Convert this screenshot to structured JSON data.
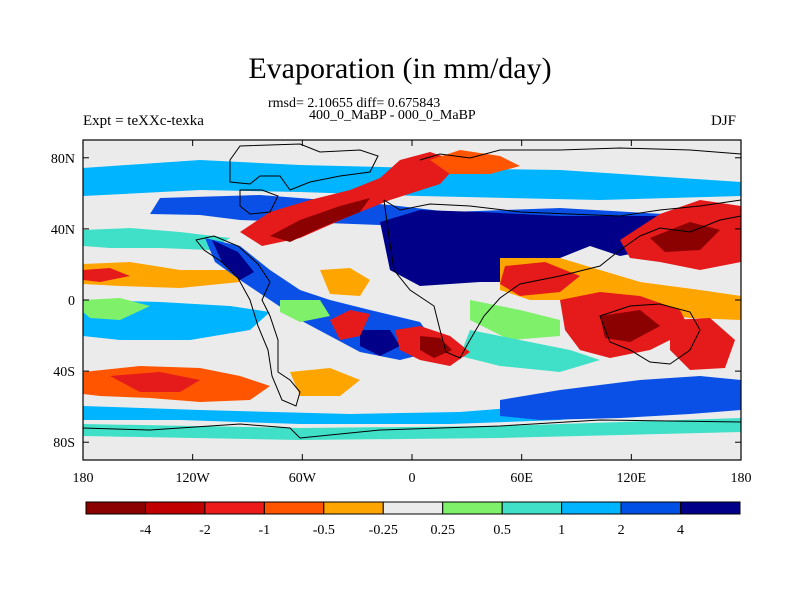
{
  "title": "Evaporation (in mm/day)",
  "stats_line": "rmsd= 2.10655 diff= 0.675843",
  "subtitle": "400_0_MaBP - 000_0_MaBP",
  "left_label": "Expt = teXXc-texka",
  "right_label": "DJF",
  "lat_ticks": [
    {
      "lat": 80,
      "label": "80N"
    },
    {
      "lat": 40,
      "label": "40N"
    },
    {
      "lat": 0,
      "label": "0"
    },
    {
      "lat": -40,
      "label": "40S"
    },
    {
      "lat": -80,
      "label": "80S"
    }
  ],
  "lon_ticks": [
    {
      "lon": -180,
      "label": "180"
    },
    {
      "lon": -120,
      "label": "120W"
    },
    {
      "lon": -60,
      "label": "60W"
    },
    {
      "lon": 0,
      "label": "0"
    },
    {
      "lon": 60,
      "label": "60E"
    },
    {
      "lon": 120,
      "label": "120E"
    },
    {
      "lon": 180,
      "label": "180"
    }
  ],
  "colorbar": {
    "colors": [
      "#8b0000",
      "#c00000",
      "#ee1b1b",
      "#ff5500",
      "#ffa500",
      "#ebebeb",
      "#7ef06a",
      "#40e0c8",
      "#00b4ff",
      "#0050e6",
      "#000088"
    ],
    "labels": [
      "-4",
      "-2",
      "-1",
      "-0.5",
      "-0.25",
      "0.25",
      "0.5",
      "1",
      "2",
      "4"
    ]
  },
  "field_colors": {
    "no_change": "#ebebeb",
    "dark_red": "#8b0000",
    "red": "#e51a1a",
    "orange_red": "#ff5500",
    "orange": "#ffa500",
    "light_green": "#7ef06a",
    "teal": "#40e0c8",
    "sky_blue": "#00b4ff",
    "blue": "#0a50e6",
    "navy": "#000088"
  }
}
